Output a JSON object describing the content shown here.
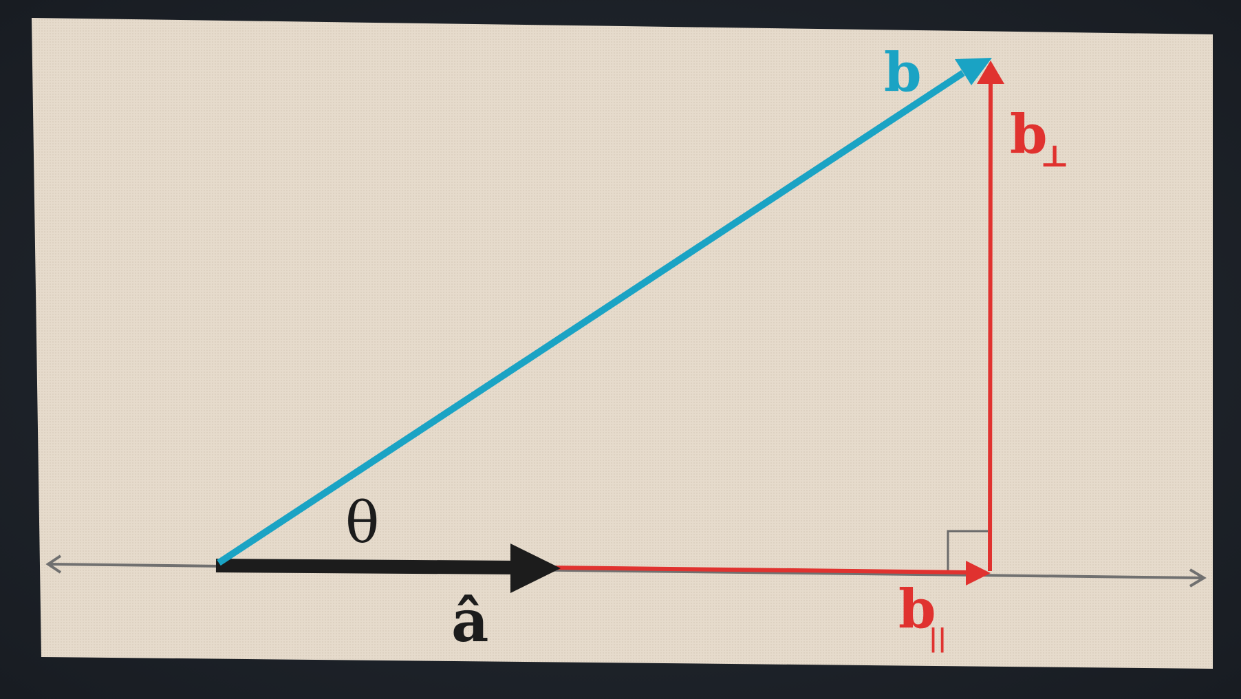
{
  "diagram": {
    "labels": {
      "b": "b",
      "b_perp": "b",
      "b_perp_sub": "⊥",
      "b_par": "b",
      "b_par_sub": "||",
      "a_hat": "â",
      "theta": "θ"
    },
    "colors": {
      "background": "#e8dccd",
      "screen_bezel": "#1e232b",
      "b_vector": "#1aa3c4",
      "components": "#e0322f",
      "a_hat_vector": "#1c1c1c",
      "axis": "#6e6e6e"
    },
    "shapes": {
      "b_vector": "arrow",
      "a_hat_vector": "arrow",
      "b_parallel": "arrow",
      "b_perpendicular": "arrow",
      "axis": "double-headed-arrow",
      "right_angle_marker": "square-corner"
    }
  }
}
